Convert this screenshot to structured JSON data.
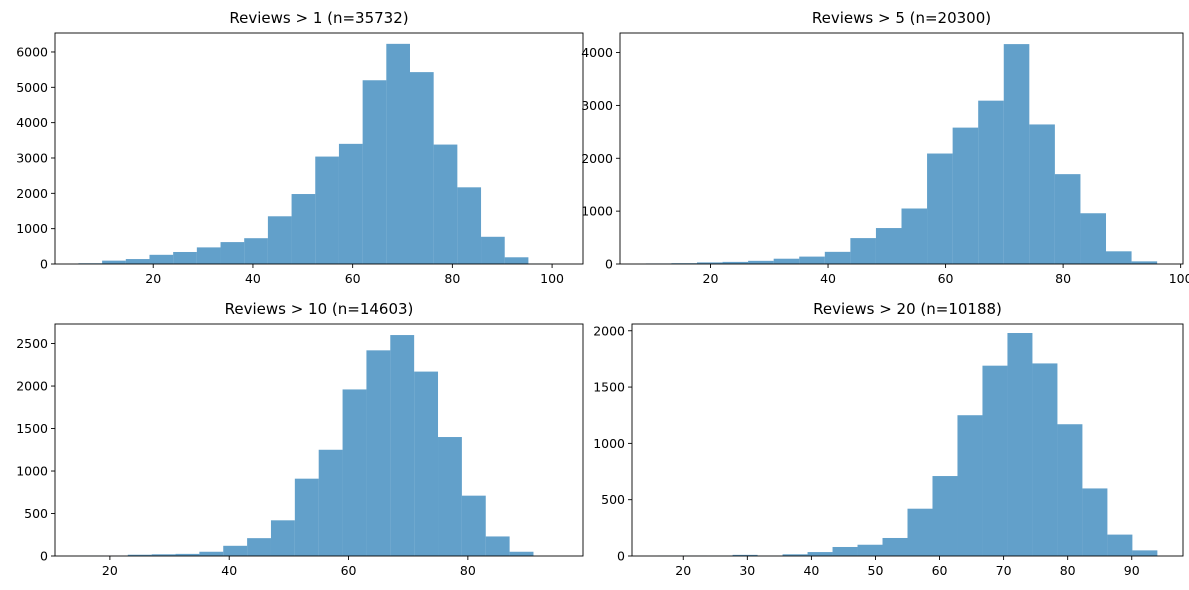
{
  "chart_data": [
    {
      "type": "bar",
      "title": "Reviews > 1 (n=35732)",
      "xlabel": "",
      "ylabel": "",
      "xlim": [
        0.3,
        106.2
      ],
      "ylim": [
        0,
        6537
      ],
      "xticks": [
        20,
        40,
        60,
        80,
        100
      ],
      "yticks": [
        0,
        1000,
        2000,
        3000,
        4000,
        5000,
        6000
      ],
      "color": "#1f77b4",
      "opacity": 0.7,
      "bin_edges": [
        5.0,
        9.75,
        14.5,
        19.25,
        24.0,
        28.75,
        33.5,
        38.25,
        43.0,
        47.75,
        52.5,
        57.25,
        62.0,
        66.75,
        71.5,
        76.25,
        81.0,
        85.75,
        90.5,
        95.25,
        100.0
      ],
      "values": [
        20,
        95,
        140,
        260,
        340,
        470,
        620,
        730,
        1350,
        1980,
        3040,
        3400,
        5200,
        6230,
        5430,
        3380,
        2170,
        770,
        190,
        10
      ]
    },
    {
      "type": "bar",
      "title": "Reviews > 5 (n=20300)",
      "xlabel": "",
      "ylabel": "",
      "xlim": [
        4.6,
        100.4
      ],
      "ylim": [
        0,
        4370
      ],
      "xticks": [
        20,
        40,
        60,
        80,
        100
      ],
      "yticks": [
        0,
        1000,
        2000,
        3000,
        4000
      ],
      "color": "#1f77b4",
      "opacity": 0.7,
      "bin_edges": [
        9.0,
        13.35,
        17.7,
        22.05,
        26.4,
        30.75,
        35.1,
        39.45,
        43.8,
        48.15,
        52.5,
        56.85,
        61.2,
        65.55,
        69.9,
        74.25,
        78.6,
        82.95,
        87.3,
        91.65,
        96.0
      ],
      "values": [
        10,
        15,
        30,
        40,
        60,
        100,
        140,
        230,
        490,
        680,
        1050,
        2090,
        2580,
        3090,
        4160,
        2640,
        1700,
        960,
        240,
        50
      ]
    },
    {
      "type": "bar",
      "title": "Reviews > 10 (n=14603)",
      "xlabel": "",
      "ylabel": "",
      "xlim": [
        10.8,
        99.3
      ],
      "ylim": [
        0,
        2730
      ],
      "xticks": [
        20,
        40,
        60,
        80
      ],
      "yticks": [
        0,
        500,
        1000,
        1500,
        2000,
        2500
      ],
      "color": "#1f77b4",
      "opacity": 0.7,
      "bin_edges": [
        15.0,
        19.0,
        23.0,
        27.0,
        31.0,
        35.0,
        39.0,
        43.0,
        47.0,
        51.0,
        55.0,
        59.0,
        63.0,
        67.0,
        71.0,
        75.0,
        79.0,
        83.0,
        87.0,
        91.0,
        95.0
      ],
      "values": [
        3,
        2,
        15,
        20,
        25,
        50,
        120,
        210,
        420,
        910,
        1250,
        1960,
        2420,
        2600,
        2170,
        1400,
        710,
        230,
        50,
        0
      ]
    },
    {
      "type": "bar",
      "title": "Reviews > 20 (n=10188)",
      "xlabel": "",
      "ylabel": "",
      "xlim": [
        12.0,
        98.0
      ],
      "ylim": [
        0,
        2060
      ],
      "xticks": [
        20,
        30,
        40,
        50,
        60,
        70,
        80,
        90
      ],
      "yticks": [
        0,
        500,
        1000,
        1500,
        2000
      ],
      "color": "#1f77b4",
      "opacity": 0.7,
      "bin_edges": [
        16.0,
        19.9,
        23.8,
        27.7,
        31.6,
        35.5,
        39.4,
        43.3,
        47.2,
        51.1,
        55.0,
        58.9,
        62.8,
        66.7,
        70.6,
        74.5,
        78.4,
        82.3,
        86.2,
        90.1,
        94.0
      ],
      "values": [
        2,
        3,
        2,
        10,
        3,
        15,
        35,
        80,
        100,
        160,
        420,
        710,
        1250,
        1690,
        1980,
        1710,
        1170,
        600,
        190,
        50
      ]
    }
  ]
}
